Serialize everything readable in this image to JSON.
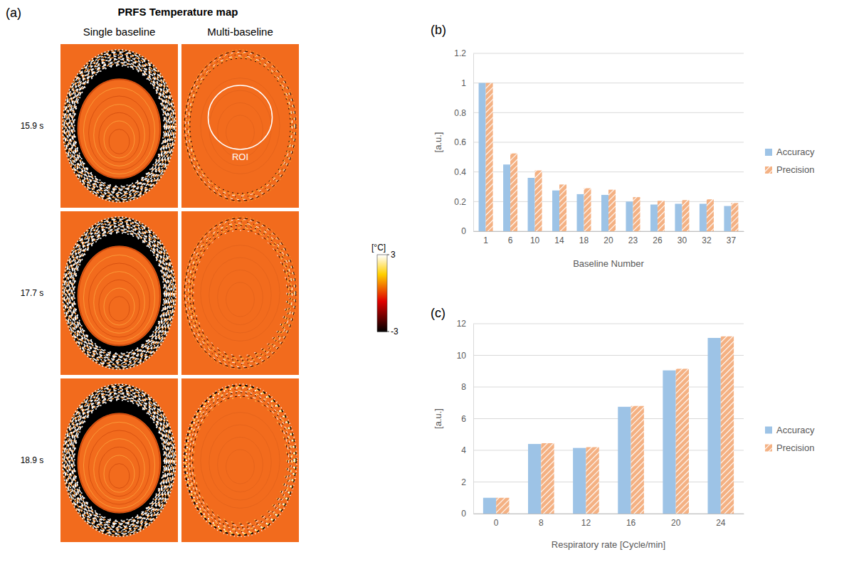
{
  "panel_a": {
    "panel": "(a)",
    "title": "PRFS Temperature map",
    "columns": [
      "Single baseline",
      "Multi-baseline"
    ],
    "rows": [
      "15.9 s",
      "17.7 s",
      "18.9 s"
    ],
    "roi_label": "ROI",
    "colorbar": {
      "label": "[°C]",
      "range": [
        -3,
        3
      ],
      "ticks": [
        -3,
        3
      ]
    }
  },
  "chart_data": [
    {
      "panel": "(b)",
      "type": "bar",
      "categories": [
        "1",
        "6",
        "10",
        "14",
        "18",
        "20",
        "23",
        "26",
        "30",
        "32",
        "37"
      ],
      "series": [
        {
          "name": "Accuracy",
          "color": "#9dc3e6",
          "values": [
            1,
            0.45,
            0.36,
            0.275,
            0.25,
            0.245,
            0.2,
            0.18,
            0.185,
            0.185,
            0.17
          ]
        },
        {
          "name": "Precision",
          "color": "#f4b183",
          "values": [
            1,
            0.525,
            0.41,
            0.315,
            0.29,
            0.28,
            0.23,
            0.205,
            0.21,
            0.215,
            0.19
          ]
        }
      ],
      "x_label": "Baseline Number",
      "y_label": "[a.u.]",
      "ylim": [
        0,
        1.2
      ],
      "yticks": [
        0,
        0.2,
        0.4,
        0.6,
        0.8,
        1,
        1.2
      ],
      "grid": true,
      "legend": "right"
    },
    {
      "panel": "(c)",
      "type": "bar",
      "categories": [
        "0",
        "8",
        "12",
        "16",
        "20",
        "24"
      ],
      "series": [
        {
          "name": "Accuracy",
          "color": "#9dc3e6",
          "values": [
            1,
            4.4,
            4.15,
            6.75,
            9.05,
            11.1
          ]
        },
        {
          "name": "Precision",
          "color": "#f4b183",
          "values": [
            1,
            4.45,
            4.2,
            6.8,
            9.15,
            11.2
          ]
        }
      ],
      "x_label": "Respiratory rate [Cycle/min]",
      "y_label": "[a.u.]",
      "ylim": [
        0,
        12
      ],
      "yticks": [
        0,
        2,
        4,
        6,
        8,
        10,
        12
      ],
      "grid": true,
      "legend": "right"
    }
  ]
}
